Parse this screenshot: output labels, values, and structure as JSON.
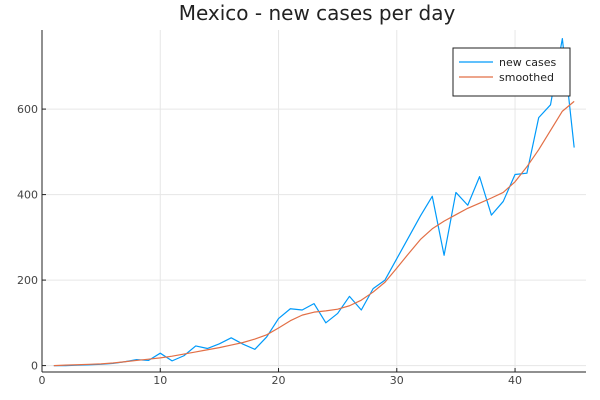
{
  "chart_data": {
    "type": "line",
    "title": "Mexico - new cases per day",
    "xlabel": "",
    "ylabel": "",
    "xlim": [
      0,
      46
    ],
    "ylim": [
      -15,
      785
    ],
    "xticks": [
      0,
      10,
      20,
      30,
      40
    ],
    "yticks": [
      0,
      200,
      400,
      600
    ],
    "grid": true,
    "legend_position": "top-right",
    "x": [
      1,
      2,
      3,
      4,
      5,
      6,
      7,
      8,
      9,
      10,
      11,
      12,
      13,
      14,
      15,
      16,
      17,
      18,
      19,
      20,
      21,
      22,
      23,
      24,
      25,
      26,
      27,
      28,
      29,
      30,
      31,
      32,
      33,
      34,
      35,
      36,
      37,
      38,
      39,
      40,
      41,
      42,
      43,
      44,
      45
    ],
    "series": [
      {
        "name": "new cases",
        "color": "#009AFA",
        "values": [
          0,
          0,
          1,
          2,
          3,
          5,
          9,
          14,
          12,
          29,
          11,
          23,
          46,
          40,
          51,
          65,
          50,
          38,
          67,
          110,
          133,
          130,
          145,
          100,
          122,
          162,
          130,
          180,
          200,
          250,
          300,
          350,
          396,
          258,
          405,
          375,
          442,
          352,
          384,
          447,
          450,
          580,
          610,
          765,
          510
        ]
      },
      {
        "name": "smoothed",
        "color": "#E26F46",
        "values": [
          0,
          1,
          2,
          3,
          4,
          6,
          9,
          12,
          15,
          18,
          22,
          27,
          32,
          37,
          42,
          48,
          54,
          62,
          72,
          88,
          105,
          118,
          125,
          128,
          132,
          140,
          153,
          172,
          195,
          228,
          262,
          295,
          320,
          338,
          353,
          368,
          380,
          392,
          405,
          430,
          465,
          505,
          550,
          595,
          618
        ]
      }
    ]
  }
}
